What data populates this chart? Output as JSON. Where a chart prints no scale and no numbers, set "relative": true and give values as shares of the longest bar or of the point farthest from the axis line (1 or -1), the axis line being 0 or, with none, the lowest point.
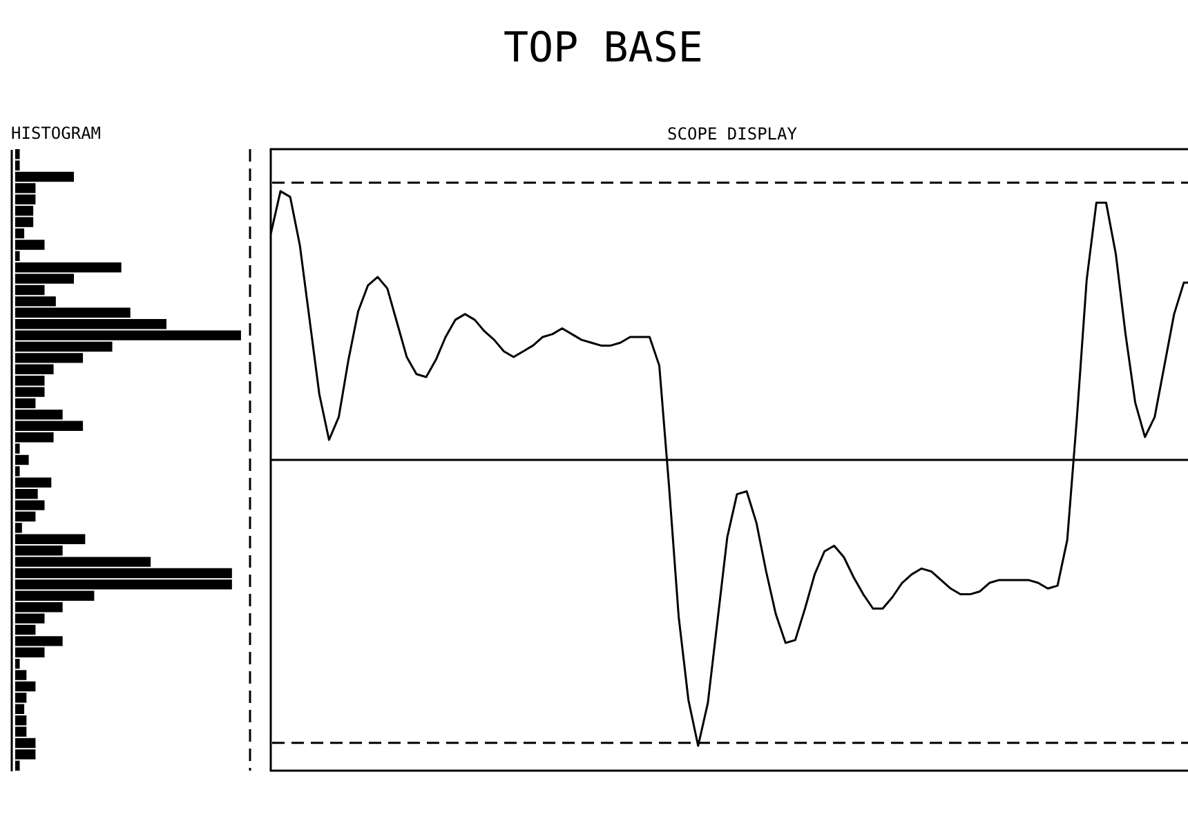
{
  "chart_data": [
    {
      "type": "bar",
      "title": "HISTOGRAM",
      "annotations": [
        "TOP BASE"
      ],
      "orientation": "horizontal",
      "relative": true,
      "color": "#000000",
      "categories": [
        null,
        null,
        null,
        null,
        null,
        null,
        null,
        null,
        null,
        null,
        null,
        null,
        null,
        null,
        null,
        null,
        null,
        null,
        null,
        null,
        null,
        null,
        null,
        null,
        null,
        null,
        null,
        null,
        null,
        null,
        null,
        null,
        null,
        null,
        null,
        null,
        null,
        null,
        null,
        null,
        null,
        null,
        null,
        null,
        null,
        null,
        null,
        null,
        null,
        null,
        null,
        null,
        null,
        null,
        null
      ],
      "values": [
        0.02,
        0.02,
        0.26,
        0.09,
        0.09,
        0.08,
        0.08,
        0.04,
        0.13,
        0.02,
        0.47,
        0.26,
        0.13,
        0.18,
        0.51,
        0.67,
        1,
        0.43,
        0.3,
        0.17,
        0.13,
        0.13,
        0.09,
        0.21,
        0.3,
        0.17,
        0.02,
        0.06,
        0.02,
        0.16,
        0.1,
        0.13,
        0.09,
        0.03,
        0.31,
        0.21,
        0.6,
        0.96,
        0.96,
        0.35,
        0.21,
        0.13,
        0.09,
        0.21,
        0.13,
        0.02,
        0.05,
        0.09,
        0.05,
        0.04,
        0.05,
        0.05,
        0.09,
        0.09,
        0.02
      ],
      "ref_lines": [
        {
          "axis": "x",
          "value": 1.04,
          "line_style": "dashed",
          "color": "#000000"
        }
      ]
    },
    {
      "type": "line",
      "title": "SCOPE DISPLAY",
      "relative": true,
      "color": "#000000",
      "categories": [
        null,
        null,
        null,
        null,
        null,
        null,
        null,
        null,
        null,
        null,
        null,
        null,
        null,
        null,
        null,
        null,
        null,
        null,
        null,
        null,
        null,
        null,
        null,
        null,
        null,
        null,
        null,
        null,
        null,
        null,
        null,
        null,
        null,
        null,
        null,
        null,
        null,
        null,
        null,
        null,
        null,
        null,
        null,
        null,
        null,
        null,
        null,
        null,
        null,
        null,
        null,
        null,
        null,
        null,
        null,
        null,
        null,
        null,
        null,
        null,
        null,
        null,
        null,
        null,
        null,
        null,
        null,
        null,
        null,
        null,
        null,
        null,
        null,
        null,
        null,
        null,
        null,
        null,
        null,
        null,
        null,
        null,
        null,
        null,
        null,
        null,
        null,
        null,
        null,
        null,
        null,
        null,
        null,
        null,
        null,
        null
      ],
      "values": [
        0.79,
        0.94,
        0.92,
        0.75,
        0.49,
        0.23,
        0.07,
        0.15,
        0.35,
        0.52,
        0.61,
        0.64,
        0.6,
        0.48,
        0.36,
        0.3,
        0.29,
        0.35,
        0.43,
        0.49,
        0.51,
        0.49,
        0.45,
        0.42,
        0.38,
        0.36,
        0.38,
        0.4,
        0.43,
        0.44,
        0.46,
        0.44,
        0.42,
        0.41,
        0.4,
        0.4,
        0.41,
        0.43,
        0.43,
        0.43,
        0.33,
        -0.09,
        -0.55,
        -0.84,
        -1.0,
        -0.85,
        -0.56,
        -0.27,
        -0.12,
        -0.11,
        -0.22,
        -0.39,
        -0.54,
        -0.64,
        -0.63,
        -0.52,
        -0.4,
        -0.32,
        -0.3,
        -0.34,
        -0.41,
        -0.47,
        -0.52,
        -0.52,
        -0.48,
        -0.43,
        -0.4,
        -0.38,
        -0.39,
        -0.42,
        -0.45,
        -0.47,
        -0.47,
        -0.46,
        -0.43,
        -0.42,
        -0.42,
        -0.42,
        -0.42,
        -0.43,
        -0.45,
        -0.44,
        -0.28,
        0.15,
        0.63,
        0.9,
        0.9,
        0.72,
        0.44,
        0.2,
        0.08,
        0.15,
        0.33,
        0.51,
        0.62,
        0.62
      ],
      "ref_lines": [
        {
          "axis": "y",
          "value": 0.97,
          "line_style": "dashed",
          "color": "#000000"
        },
        {
          "axis": "y",
          "value": -0.99,
          "line_style": "dashed",
          "color": "#000000"
        }
      ]
    }
  ]
}
